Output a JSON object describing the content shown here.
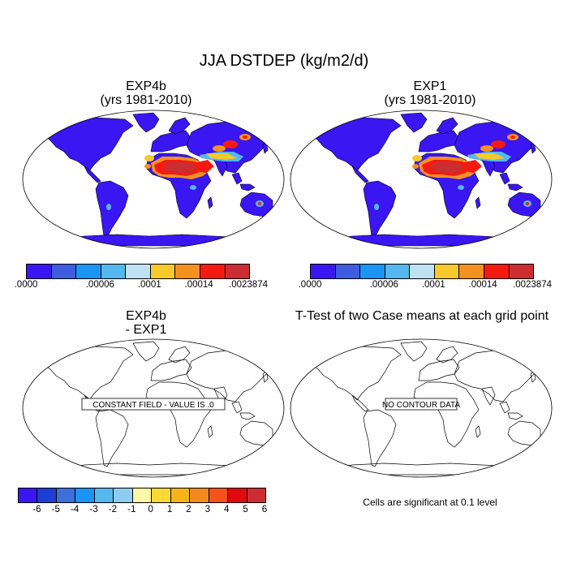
{
  "title": "JJA DSTDEP (kg/m2/d)",
  "panels": [
    {
      "title": "EXP4b",
      "subtitle": "(yrs 1981-2010)"
    },
    {
      "title": "EXP1",
      "subtitle": "(yrs 1981-2010)"
    },
    {
      "title": "EXP4b",
      "subtitle": "- EXP1",
      "message": "CONSTANT FIELD - VALUE IS .0"
    },
    {
      "title": "T-Test of two Case means at each grid point",
      "message": "NO CONTOUR DATA",
      "note": "Cells are significant at 0.1 level"
    }
  ],
  "legend_top": {
    "colors": [
      "#3a16f2",
      "#3d5ce0",
      "#1a94f5",
      "#55b8ee",
      "#bfe2f3",
      "#f8c92a",
      "#f4911f",
      "#f51a10",
      "#cc2d30"
    ],
    "labels": [
      ".0000",
      ".00006",
      ".0001",
      ".00014",
      ".0023874"
    ]
  },
  "legend_bottom": {
    "colors": [
      "#3a16f2",
      "#1f3ed6",
      "#3d6fdc",
      "#1a94f5",
      "#55b8ee",
      "#8ccdf0",
      "#fdf8a6",
      "#fbd835",
      "#f7b418",
      "#f48a1d",
      "#f5531a",
      "#e0090f",
      "#cc2d30"
    ],
    "labels": [
      "-6",
      "-5",
      "-4",
      "-3",
      "-2",
      "-1",
      "0",
      "1",
      "2",
      "3",
      "4",
      "5",
      "6"
    ]
  }
}
